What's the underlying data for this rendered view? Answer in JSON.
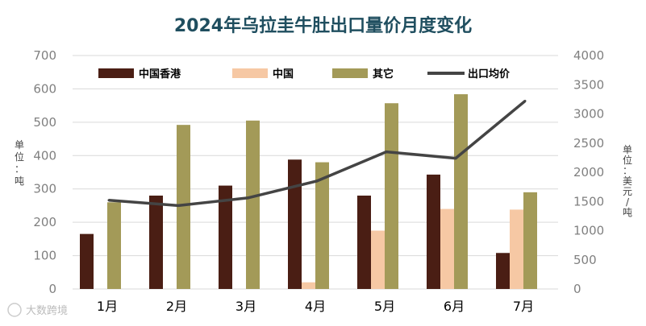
{
  "chart_data": {
    "type": "bar",
    "title": "2024年乌拉圭牛肚出口量价月度变化",
    "categories": [
      "1月",
      "2月",
      "3月",
      "4月",
      "5月",
      "6月",
      "7月"
    ],
    "series": [
      {
        "name": "中国香港",
        "axis": "left",
        "color": "#4a1e14",
        "values": [
          165,
          280,
          310,
          388,
          280,
          343,
          108
        ]
      },
      {
        "name": "中国",
        "axis": "left",
        "color": "#f6c8a4",
        "values": [
          0,
          0,
          0,
          20,
          175,
          240,
          238
        ]
      },
      {
        "name": "其它",
        "axis": "left",
        "color": "#a39a58",
        "values": [
          260,
          492,
          505,
          380,
          557,
          584,
          290
        ]
      },
      {
        "name": "出口均价",
        "axis": "right",
        "type": "line",
        "color": "#444444",
        "values": [
          1520,
          1430,
          1560,
          1850,
          2350,
          2240,
          3220
        ]
      }
    ],
    "y_left": {
      "label": "单位：吨",
      "min": 0,
      "max": 700,
      "ticks": [
        0,
        100,
        200,
        300,
        400,
        500,
        600,
        700
      ]
    },
    "y_right": {
      "label": "单位：美元/吨",
      "min": 0,
      "max": 4000,
      "ticks": [
        0,
        500,
        1000,
        1500,
        2000,
        2500,
        3000,
        3500,
        4000
      ]
    },
    "legend_position": "top",
    "grid": true
  },
  "watermark": "大数跨境"
}
